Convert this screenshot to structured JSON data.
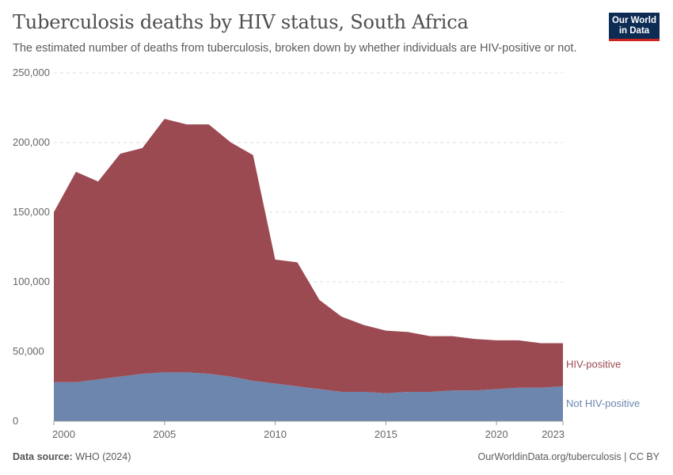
{
  "header": {
    "title": "Tuberculosis deaths by HIV status, South Africa",
    "subtitle": "The estimated number of deaths from tuberculosis, broken down by whether individuals are HIV-positive or not."
  },
  "logo": {
    "line1": "Our World",
    "line2": "in Data"
  },
  "footer": {
    "source_label": "Data source:",
    "source_value": "WHO (2024)",
    "url_text": "OurWorldinData.org/tuberculosis | CC BY"
  },
  "chart_data": {
    "type": "area",
    "stacked": true,
    "x": [
      2000,
      2001,
      2002,
      2003,
      2004,
      2005,
      2006,
      2007,
      2008,
      2009,
      2010,
      2011,
      2012,
      2013,
      2014,
      2015,
      2016,
      2017,
      2018,
      2019,
      2020,
      2021,
      2022,
      2023
    ],
    "series": [
      {
        "name": "Not HIV-positive",
        "color": "#6c86ae",
        "values": [
          28000,
          28000,
          30000,
          32000,
          34000,
          35000,
          35000,
          34000,
          32000,
          29000,
          27000,
          25000,
          23000,
          21000,
          21000,
          20000,
          21000,
          21000,
          22000,
          22000,
          23000,
          24000,
          24000,
          25000
        ]
      },
      {
        "name": "HIV-positive",
        "color": "#9b4a52",
        "values": [
          122000,
          151000,
          142000,
          160000,
          162000,
          182000,
          178000,
          179000,
          168000,
          162000,
          89000,
          89000,
          64000,
          54000,
          48000,
          45000,
          43000,
          40000,
          39000,
          37000,
          35000,
          34000,
          32000,
          31000
        ]
      }
    ],
    "x_ticks": [
      "2000",
      "2005",
      "2010",
      "2015",
      "2020",
      "2023"
    ],
    "x_tick_values": [
      2000,
      2005,
      2010,
      2015,
      2020,
      2023
    ],
    "y_ticks": [
      "0",
      "50,000",
      "100,000",
      "150,000",
      "200,000",
      "250,000"
    ],
    "y_tick_values": [
      0,
      50000,
      100000,
      150000,
      200000,
      250000
    ],
    "xlim": [
      2000,
      2023
    ],
    "ylim": [
      0,
      250000
    ],
    "grid": "horizontal dashed",
    "legend": "right, inline labels"
  }
}
